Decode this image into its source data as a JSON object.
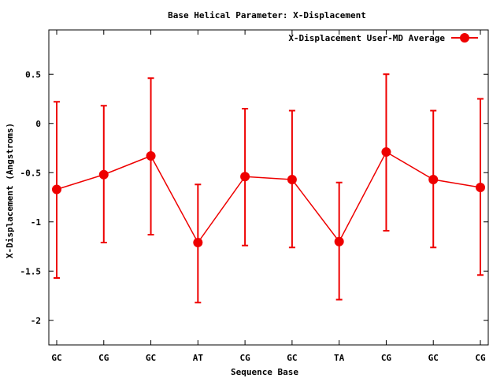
{
  "chart_data": {
    "type": "line",
    "title": "Base  Helical Parameter: X-Displacement",
    "xlabel": "Sequence Base",
    "ylabel": "X-Displacement (Angstroms)",
    "categories": [
      "GC",
      "CG",
      "GC",
      "AT",
      "CG",
      "GC",
      "TA",
      "CG",
      "GC",
      "CG"
    ],
    "ylim": [
      -2.25,
      0.95
    ],
    "yticks": [
      0.5,
      0,
      -0.5,
      -1,
      -1.5,
      -2
    ],
    "ytick_labels": [
      "0.5",
      "0",
      "-0.5",
      "-1",
      "-1.5",
      "-2"
    ],
    "legend_position": "top-right",
    "grid": false,
    "series": [
      {
        "name": "X-Displacement User-MD Average",
        "color": "#ee0000",
        "values": [
          -0.67,
          -0.52,
          -0.33,
          -1.21,
          -0.54,
          -0.57,
          -1.2,
          -0.29,
          -0.57,
          -0.65
        ],
        "error_low": [
          -1.57,
          -1.21,
          -1.13,
          -1.82,
          -1.24,
          -1.26,
          -1.79,
          -1.09,
          -1.26,
          -1.54
        ],
        "error_high": [
          0.22,
          0.18,
          0.46,
          -0.62,
          0.15,
          0.13,
          -0.6,
          0.5,
          0.13,
          0.25
        ]
      }
    ]
  }
}
